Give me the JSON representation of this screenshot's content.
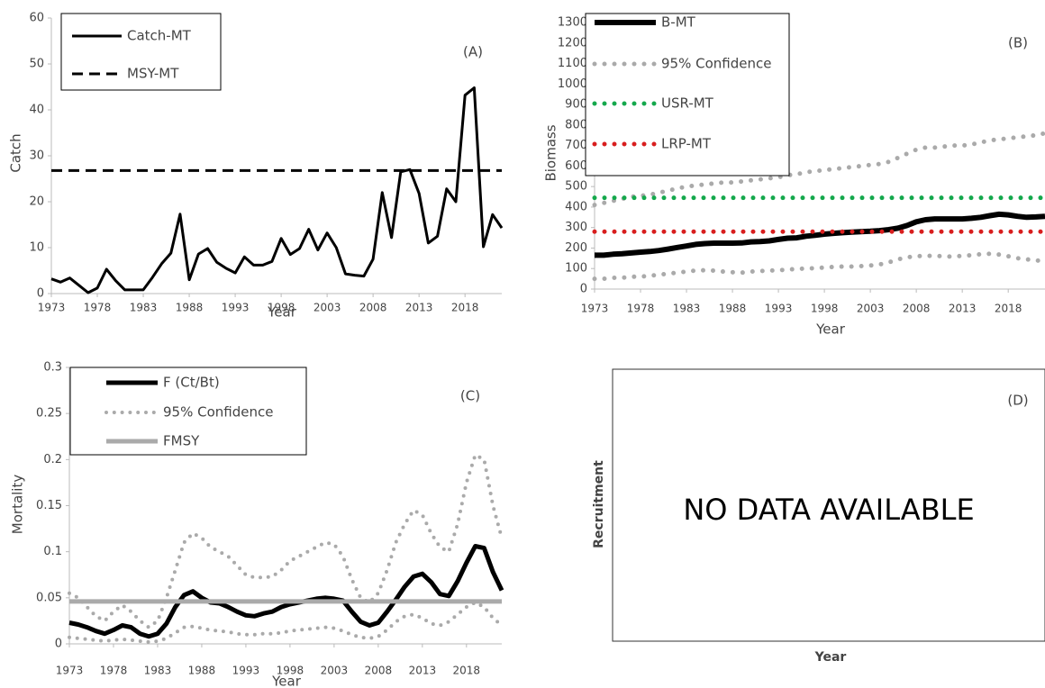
{
  "chart_data": [
    {
      "type": "line",
      "title": "(A)",
      "x_label": "Year",
      "y_label": "Catch",
      "x": [
        1973,
        1974,
        1975,
        1976,
        1977,
        1978,
        1979,
        1980,
        1981,
        1982,
        1983,
        1984,
        1985,
        1986,
        1987,
        1988,
        1989,
        1990,
        1991,
        1992,
        1993,
        1994,
        1995,
        1996,
        1997,
        1998,
        1999,
        2000,
        2001,
        2002,
        2003,
        2004,
        2005,
        2006,
        2007,
        2008,
        2009,
        2010,
        2011,
        2012,
        2013,
        2014,
        2015,
        2016,
        2017,
        2018,
        2019,
        2020,
        2021,
        2022
      ],
      "xlim": [
        1973,
        2022
      ],
      "xticks": [
        1973,
        1978,
        1983,
        1988,
        1993,
        1998,
        2003,
        2008,
        2013,
        2018
      ],
      "ylim": [
        0,
        60
      ],
      "yticks": [
        0,
        10,
        20,
        30,
        40,
        50,
        60
      ],
      "series": [
        {
          "name": "Catch-MT",
          "color": "#000000",
          "style": "solid",
          "width": 3,
          "values": [
            3.2,
            2.5,
            3.4,
            1.8,
            0.2,
            1.2,
            5.3,
            2.8,
            0.8,
            0.8,
            0.8,
            3.5,
            6.5,
            8.8,
            17.3,
            3.0,
            8.6,
            9.8,
            6.8,
            5.5,
            4.5,
            8.0,
            6.2,
            6.2,
            7.0,
            12.0,
            8.5,
            9.8,
            14.0,
            9.5,
            13.2,
            10.0,
            4.3,
            4.0,
            3.8,
            7.5,
            22.0,
            12.2,
            26.5,
            27.0,
            21.8,
            11.0,
            12.5,
            22.8,
            20.0,
            43.2,
            44.8,
            10.2,
            17.2,
            14.3
          ]
        },
        {
          "name": "MSY-MT",
          "color": "#000000",
          "style": "dashed",
          "width": 3,
          "level": 26.8
        }
      ]
    },
    {
      "type": "line",
      "title": "(B)",
      "x_label": "Year",
      "y_label": "Biomass",
      "x": [
        1973,
        1974,
        1975,
        1976,
        1977,
        1978,
        1979,
        1980,
        1981,
        1982,
        1983,
        1984,
        1985,
        1986,
        1987,
        1988,
        1989,
        1990,
        1991,
        1992,
        1993,
        1994,
        1995,
        1996,
        1997,
        1998,
        1999,
        2000,
        2001,
        2002,
        2003,
        2004,
        2005,
        2006,
        2007,
        2008,
        2009,
        2010,
        2011,
        2012,
        2013,
        2014,
        2015,
        2016,
        2017,
        2018,
        2019,
        2020,
        2021,
        2022
      ],
      "xlim": [
        1973,
        2022
      ],
      "xticks": [
        1973,
        1978,
        1983,
        1988,
        1993,
        1998,
        2003,
        2008,
        2013,
        2018
      ],
      "ylim": [
        0,
        1300
      ],
      "yticks": [
        0,
        100,
        200,
        300,
        400,
        500,
        600,
        700,
        800,
        900,
        1000,
        1100,
        1200,
        1300
      ],
      "series": [
        {
          "name": "B-MT",
          "color": "#000000",
          "style": "solid",
          "width": 6,
          "values": [
            165,
            165,
            170,
            172,
            176,
            180,
            183,
            188,
            195,
            203,
            210,
            218,
            222,
            224,
            224,
            224,
            225,
            230,
            232,
            235,
            242,
            248,
            250,
            258,
            262,
            268,
            272,
            275,
            278,
            280,
            282,
            285,
            290,
            297,
            310,
            328,
            338,
            342,
            342,
            342,
            342,
            345,
            350,
            358,
            365,
            362,
            355,
            350,
            352,
            355
          ]
        },
        {
          "name": "95% Confidence",
          "color": "#aaaaaa",
          "style": "dotted",
          "width": 5,
          "upper": [
            410,
            420,
            430,
            440,
            450,
            455,
            460,
            470,
            480,
            490,
            500,
            505,
            510,
            515,
            520,
            520,
            525,
            530,
            535,
            540,
            545,
            555,
            560,
            570,
            575,
            580,
            585,
            590,
            595,
            600,
            605,
            610,
            620,
            640,
            660,
            680,
            690,
            690,
            695,
            700,
            700,
            705,
            715,
            725,
            730,
            735,
            740,
            745,
            750,
            760
          ],
          "lower": [
            50,
            50,
            55,
            55,
            60,
            60,
            65,
            70,
            75,
            80,
            85,
            90,
            92,
            90,
            85,
            82,
            80,
            85,
            88,
            90,
            92,
            95,
            98,
            100,
            102,
            105,
            108,
            110,
            110,
            112,
            115,
            120,
            130,
            145,
            155,
            160,
            162,
            162,
            160,
            158,
            162,
            165,
            170,
            172,
            168,
            160,
            150,
            145,
            140,
            135
          ]
        },
        {
          "name": "USR-MT",
          "color": "#14a84c",
          "style": "dotted",
          "width": 5,
          "level": 445
        },
        {
          "name": "LRP-MT",
          "color": "#d81e1e",
          "style": "dotted",
          "width": 5,
          "level": 280
        }
      ]
    },
    {
      "type": "line",
      "title": "(C)",
      "x_label": "Year",
      "y_label": "Mortality",
      "x": [
        1973,
        1974,
        1975,
        1976,
        1977,
        1978,
        1979,
        1980,
        1981,
        1982,
        1983,
        1984,
        1985,
        1986,
        1987,
        1988,
        1989,
        1990,
        1991,
        1992,
        1993,
        1994,
        1995,
        1996,
        1997,
        1998,
        1999,
        2000,
        2001,
        2002,
        2003,
        2004,
        2005,
        2006,
        2007,
        2008,
        2009,
        2010,
        2011,
        2012,
        2013,
        2014,
        2015,
        2016,
        2017,
        2018,
        2019,
        2020,
        2021,
        2022
      ],
      "xlim": [
        1973,
        2022
      ],
      "xticks": [
        1973,
        1978,
        1983,
        1988,
        1993,
        1998,
        2003,
        2008,
        2013,
        2018
      ],
      "ylim": [
        0,
        0.3
      ],
      "yticks": [
        0,
        0.05,
        0.1,
        0.15,
        0.2,
        0.25,
        0.3
      ],
      "series": [
        {
          "name": "F (Ct/Bt)",
          "color": "#000000",
          "style": "solid",
          "width": 5,
          "values": [
            0.023,
            0.021,
            0.018,
            0.014,
            0.011,
            0.015,
            0.02,
            0.018,
            0.011,
            0.008,
            0.011,
            0.022,
            0.04,
            0.053,
            0.057,
            0.05,
            0.045,
            0.044,
            0.04,
            0.035,
            0.031,
            0.03,
            0.033,
            0.035,
            0.04,
            0.043,
            0.045,
            0.047,
            0.049,
            0.05,
            0.049,
            0.047,
            0.035,
            0.024,
            0.02,
            0.023,
            0.035,
            0.048,
            0.062,
            0.073,
            0.076,
            0.067,
            0.054,
            0.052,
            0.068,
            0.088,
            0.106,
            0.104,
            0.078,
            0.058
          ]
        },
        {
          "name": "95% Confidence",
          "color": "#aaaaaa",
          "style": "dotted",
          "width": 4,
          "upper": [
            0.055,
            0.05,
            0.04,
            0.03,
            0.025,
            0.035,
            0.042,
            0.035,
            0.025,
            0.018,
            0.025,
            0.05,
            0.08,
            0.11,
            0.12,
            0.115,
            0.105,
            0.1,
            0.095,
            0.085,
            0.075,
            0.072,
            0.072,
            0.073,
            0.08,
            0.09,
            0.095,
            0.1,
            0.105,
            0.11,
            0.108,
            0.095,
            0.07,
            0.05,
            0.045,
            0.055,
            0.08,
            0.11,
            0.13,
            0.145,
            0.14,
            0.12,
            0.105,
            0.1,
            0.13,
            0.175,
            0.205,
            0.2,
            0.15,
            0.115
          ],
          "lower": [
            0.007,
            0.006,
            0.005,
            0.004,
            0.003,
            0.004,
            0.005,
            0.004,
            0.003,
            0.002,
            0.003,
            0.006,
            0.012,
            0.018,
            0.019,
            0.017,
            0.015,
            0.014,
            0.013,
            0.011,
            0.01,
            0.01,
            0.011,
            0.011,
            0.012,
            0.014,
            0.015,
            0.016,
            0.017,
            0.018,
            0.017,
            0.014,
            0.01,
            0.007,
            0.006,
            0.008,
            0.015,
            0.024,
            0.03,
            0.032,
            0.028,
            0.022,
            0.02,
            0.024,
            0.032,
            0.04,
            0.045,
            0.04,
            0.028,
            0.02
          ]
        },
        {
          "name": "FMSY",
          "color": "#aaaaaa",
          "style": "solid",
          "width": 5,
          "level": 0.046
        }
      ]
    },
    {
      "type": "empty",
      "title": "(D)",
      "x_label": "Year",
      "y_label": "Recruitment",
      "message": "NO DATA AVAILABLE"
    }
  ]
}
